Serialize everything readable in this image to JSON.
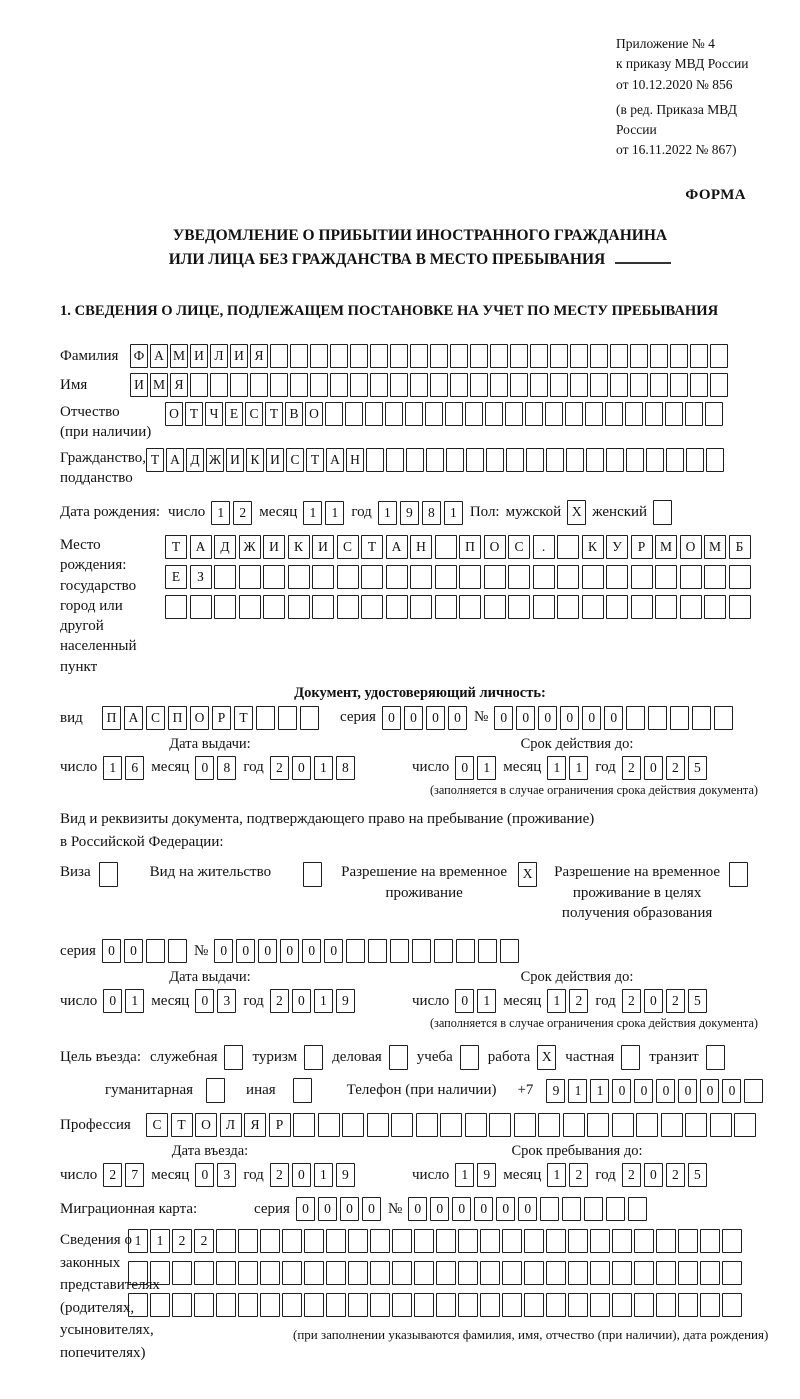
{
  "header": {
    "annex1": "Приложение № 4",
    "annex2": "к приказу МВД России",
    "annex3": "от 10.12.2020 № 856",
    "edit1": "(в ред. Приказа МВД России",
    "edit2": "от 16.11.2022 № 867)",
    "form_label": "ФОРМА"
  },
  "title": {
    "line1": "УВЕДОМЛЕНИЕ О ПРИБЫТИИ ИНОСТРАННОГО ГРАЖДАНИНА",
    "line2": "ИЛИ ЛИЦА БЕЗ ГРАЖДАНСТВА В МЕСТО ПРЕБЫВАНИЯ"
  },
  "section1_heading": "1. СВЕДЕНИЯ О ЛИЦЕ, ПОДЛЕЖАЩЕМ ПОСТАНОВКЕ НА УЧЕТ ПО МЕСТУ ПРЕБЫВАНИЯ",
  "labels": {
    "day": "число",
    "month": "месяц",
    "year": "год",
    "series": "серия",
    "number": "№",
    "issue_date": "Дата выдачи:",
    "valid_until": "Срок действия до:",
    "entry_date": "Дата въезда:",
    "stay_until": "Срок пребывания до:",
    "restriction_note": "(заполняется в случае ограничения срока действия документа)"
  },
  "surname": {
    "label": "Фамилия",
    "value": "ФАМИЛИЯ",
    "cells": 30
  },
  "firstname": {
    "label": "Имя",
    "value": "ИМЯ",
    "cells": 30
  },
  "patronymic": {
    "label1": "Отчество",
    "label2": "(при наличии)",
    "value": "ОТЧЕСТВО",
    "cells": 28
  },
  "citizenship": {
    "label1": "Гражданство,",
    "label2": "подданство",
    "value": "ТАДЖИКИСТАН",
    "cells": 29
  },
  "birth_date": {
    "label": "Дата рождения:",
    "day": {
      "value": "12",
      "cells": 2
    },
    "month": {
      "value": "11",
      "cells": 2
    },
    "year": {
      "value": "1981",
      "cells": 4
    },
    "sex_label": "Пол:",
    "male_label": "мужской",
    "male_box": {
      "value": "X",
      "cells": 1
    },
    "female_label": "женский",
    "female_box": {
      "value": "",
      "cells": 1
    }
  },
  "birth_place": {
    "label1": "Место рождения:",
    "label2": "государство",
    "label3": "город или другой",
    "label4": "населенный пункт",
    "row1": {
      "value": "ТАДЖИКИСТАН ПОС. КУРМОМБ",
      "cells": 24
    },
    "row2": {
      "value": "ЕЗ",
      "cells": 24
    },
    "row3": {
      "value": "",
      "cells": 24
    }
  },
  "identity_doc": {
    "heading": "Документ, удостоверяющий личность:",
    "kind_label": "вид",
    "kind": {
      "value": "ПАСПОРТ",
      "cells": 10
    },
    "series": {
      "value": "0000",
      "cells": 4
    },
    "number": {
      "value": "000000",
      "cells": 11
    },
    "issue": {
      "day": {
        "value": "16",
        "cells": 2
      },
      "month": {
        "value": "08",
        "cells": 2
      },
      "year": {
        "value": "2018",
        "cells": 4
      }
    },
    "valid": {
      "day": {
        "value": "01",
        "cells": 2
      },
      "month": {
        "value": "11",
        "cells": 2
      },
      "year": {
        "value": "2025",
        "cells": 4
      }
    }
  },
  "residence_doc": {
    "intro1": "Вид и реквизиты документа, подтверждающего право на пребывание (проживание)",
    "intro2": "в Российской Федерации:",
    "options": [
      {
        "label": "Виза",
        "box": {
          "value": "",
          "cells": 1
        }
      },
      {
        "label": "Вид на жительство",
        "box": {
          "value": "",
          "cells": 1
        }
      },
      {
        "label": "Разрешение на временное проживание",
        "box": {
          "value": "X",
          "cells": 1
        }
      },
      {
        "label": "Разрешение на временное проживание в целях получения образования",
        "box": {
          "value": "",
          "cells": 1
        }
      }
    ],
    "series": {
      "value": "00",
      "cells": 4
    },
    "number": {
      "value": "000000",
      "cells": 14
    },
    "issue": {
      "day": {
        "value": "01",
        "cells": 2
      },
      "month": {
        "value": "03",
        "cells": 2
      },
      "year": {
        "value": "2019",
        "cells": 4
      }
    },
    "valid": {
      "day": {
        "value": "01",
        "cells": 2
      },
      "month": {
        "value": "12",
        "cells": 2
      },
      "year": {
        "value": "2025",
        "cells": 4
      }
    }
  },
  "purpose": {
    "label": "Цель въезда:",
    "options1": [
      {
        "label": "служебная",
        "box": {
          "value": "",
          "cells": 1
        }
      },
      {
        "label": "туризм",
        "box": {
          "value": "",
          "cells": 1
        }
      },
      {
        "label": "деловая",
        "box": {
          "value": "",
          "cells": 1
        }
      },
      {
        "label": "учеба",
        "box": {
          "value": "",
          "cells": 1
        }
      },
      {
        "label": "работа",
        "box": {
          "value": "X",
          "cells": 1
        }
      },
      {
        "label": "частная",
        "box": {
          "value": "",
          "cells": 1
        }
      },
      {
        "label": "транзит",
        "box": {
          "value": "",
          "cells": 1
        }
      }
    ],
    "options2": [
      {
        "label": "гуманитарная",
        "box": {
          "value": "",
          "cells": 1
        }
      },
      {
        "label": "иная",
        "box": {
          "value": "",
          "cells": 1
        }
      }
    ],
    "phone_label": "Телефон (при наличии)",
    "phone_prefix": "+7",
    "phone": {
      "value": "911000000",
      "cells": 10
    }
  },
  "profession": {
    "label": "Профессия",
    "value": "СТОЛЯР",
    "cells": 25
  },
  "entry": {
    "issue": {
      "day": {
        "value": "27",
        "cells": 2
      },
      "month": {
        "value": "03",
        "cells": 2
      },
      "year": {
        "value": "2019",
        "cells": 4
      }
    },
    "stay": {
      "day": {
        "value": "19",
        "cells": 2
      },
      "month": {
        "value": "12",
        "cells": 2
      },
      "year": {
        "value": "2025",
        "cells": 4
      }
    }
  },
  "migration_card": {
    "label": "Миграционная карта:",
    "series": {
      "value": "0000",
      "cells": 4
    },
    "number": {
      "value": "000000",
      "cells": 11
    }
  },
  "legal_reps": {
    "line1": "Сведения о",
    "line2": "законных",
    "line3": "представителях",
    "line4": "(родителях,",
    "line5": "усыновителях,",
    "line6": "попечителях)",
    "row1": {
      "value": "1122",
      "cells": 28
    },
    "row2": {
      "value": "",
      "cells": 28
    },
    "row3": {
      "value": "",
      "cells": 28
    },
    "note": "(при заполнении указываются фамилия, имя, отчество (при наличии), дата рождения)"
  }
}
